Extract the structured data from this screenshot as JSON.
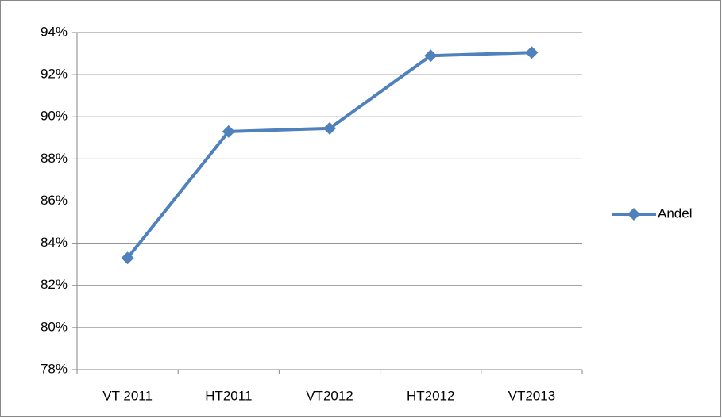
{
  "chart_data": {
    "type": "line",
    "categories": [
      "VT 2011",
      "HT2011",
      "VT2012",
      "HT2012",
      "VT2013"
    ],
    "series": [
      {
        "name": "Andel",
        "color": "#4f81bd",
        "values": [
          83.3,
          89.3,
          89.45,
          92.9,
          93.05
        ]
      }
    ],
    "ylim": [
      78,
      94
    ],
    "yticks": [
      {
        "value": 78,
        "label": "78%"
      },
      {
        "value": 80,
        "label": "80%"
      },
      {
        "value": 82,
        "label": "82%"
      },
      {
        "value": 84,
        "label": "84%"
      },
      {
        "value": 86,
        "label": "86%"
      },
      {
        "value": 88,
        "label": "88%"
      },
      {
        "value": 90,
        "label": "90%"
      },
      {
        "value": 92,
        "label": "92%"
      },
      {
        "value": 94,
        "label": "94%"
      }
    ],
    "grid": true,
    "legend": "right"
  }
}
